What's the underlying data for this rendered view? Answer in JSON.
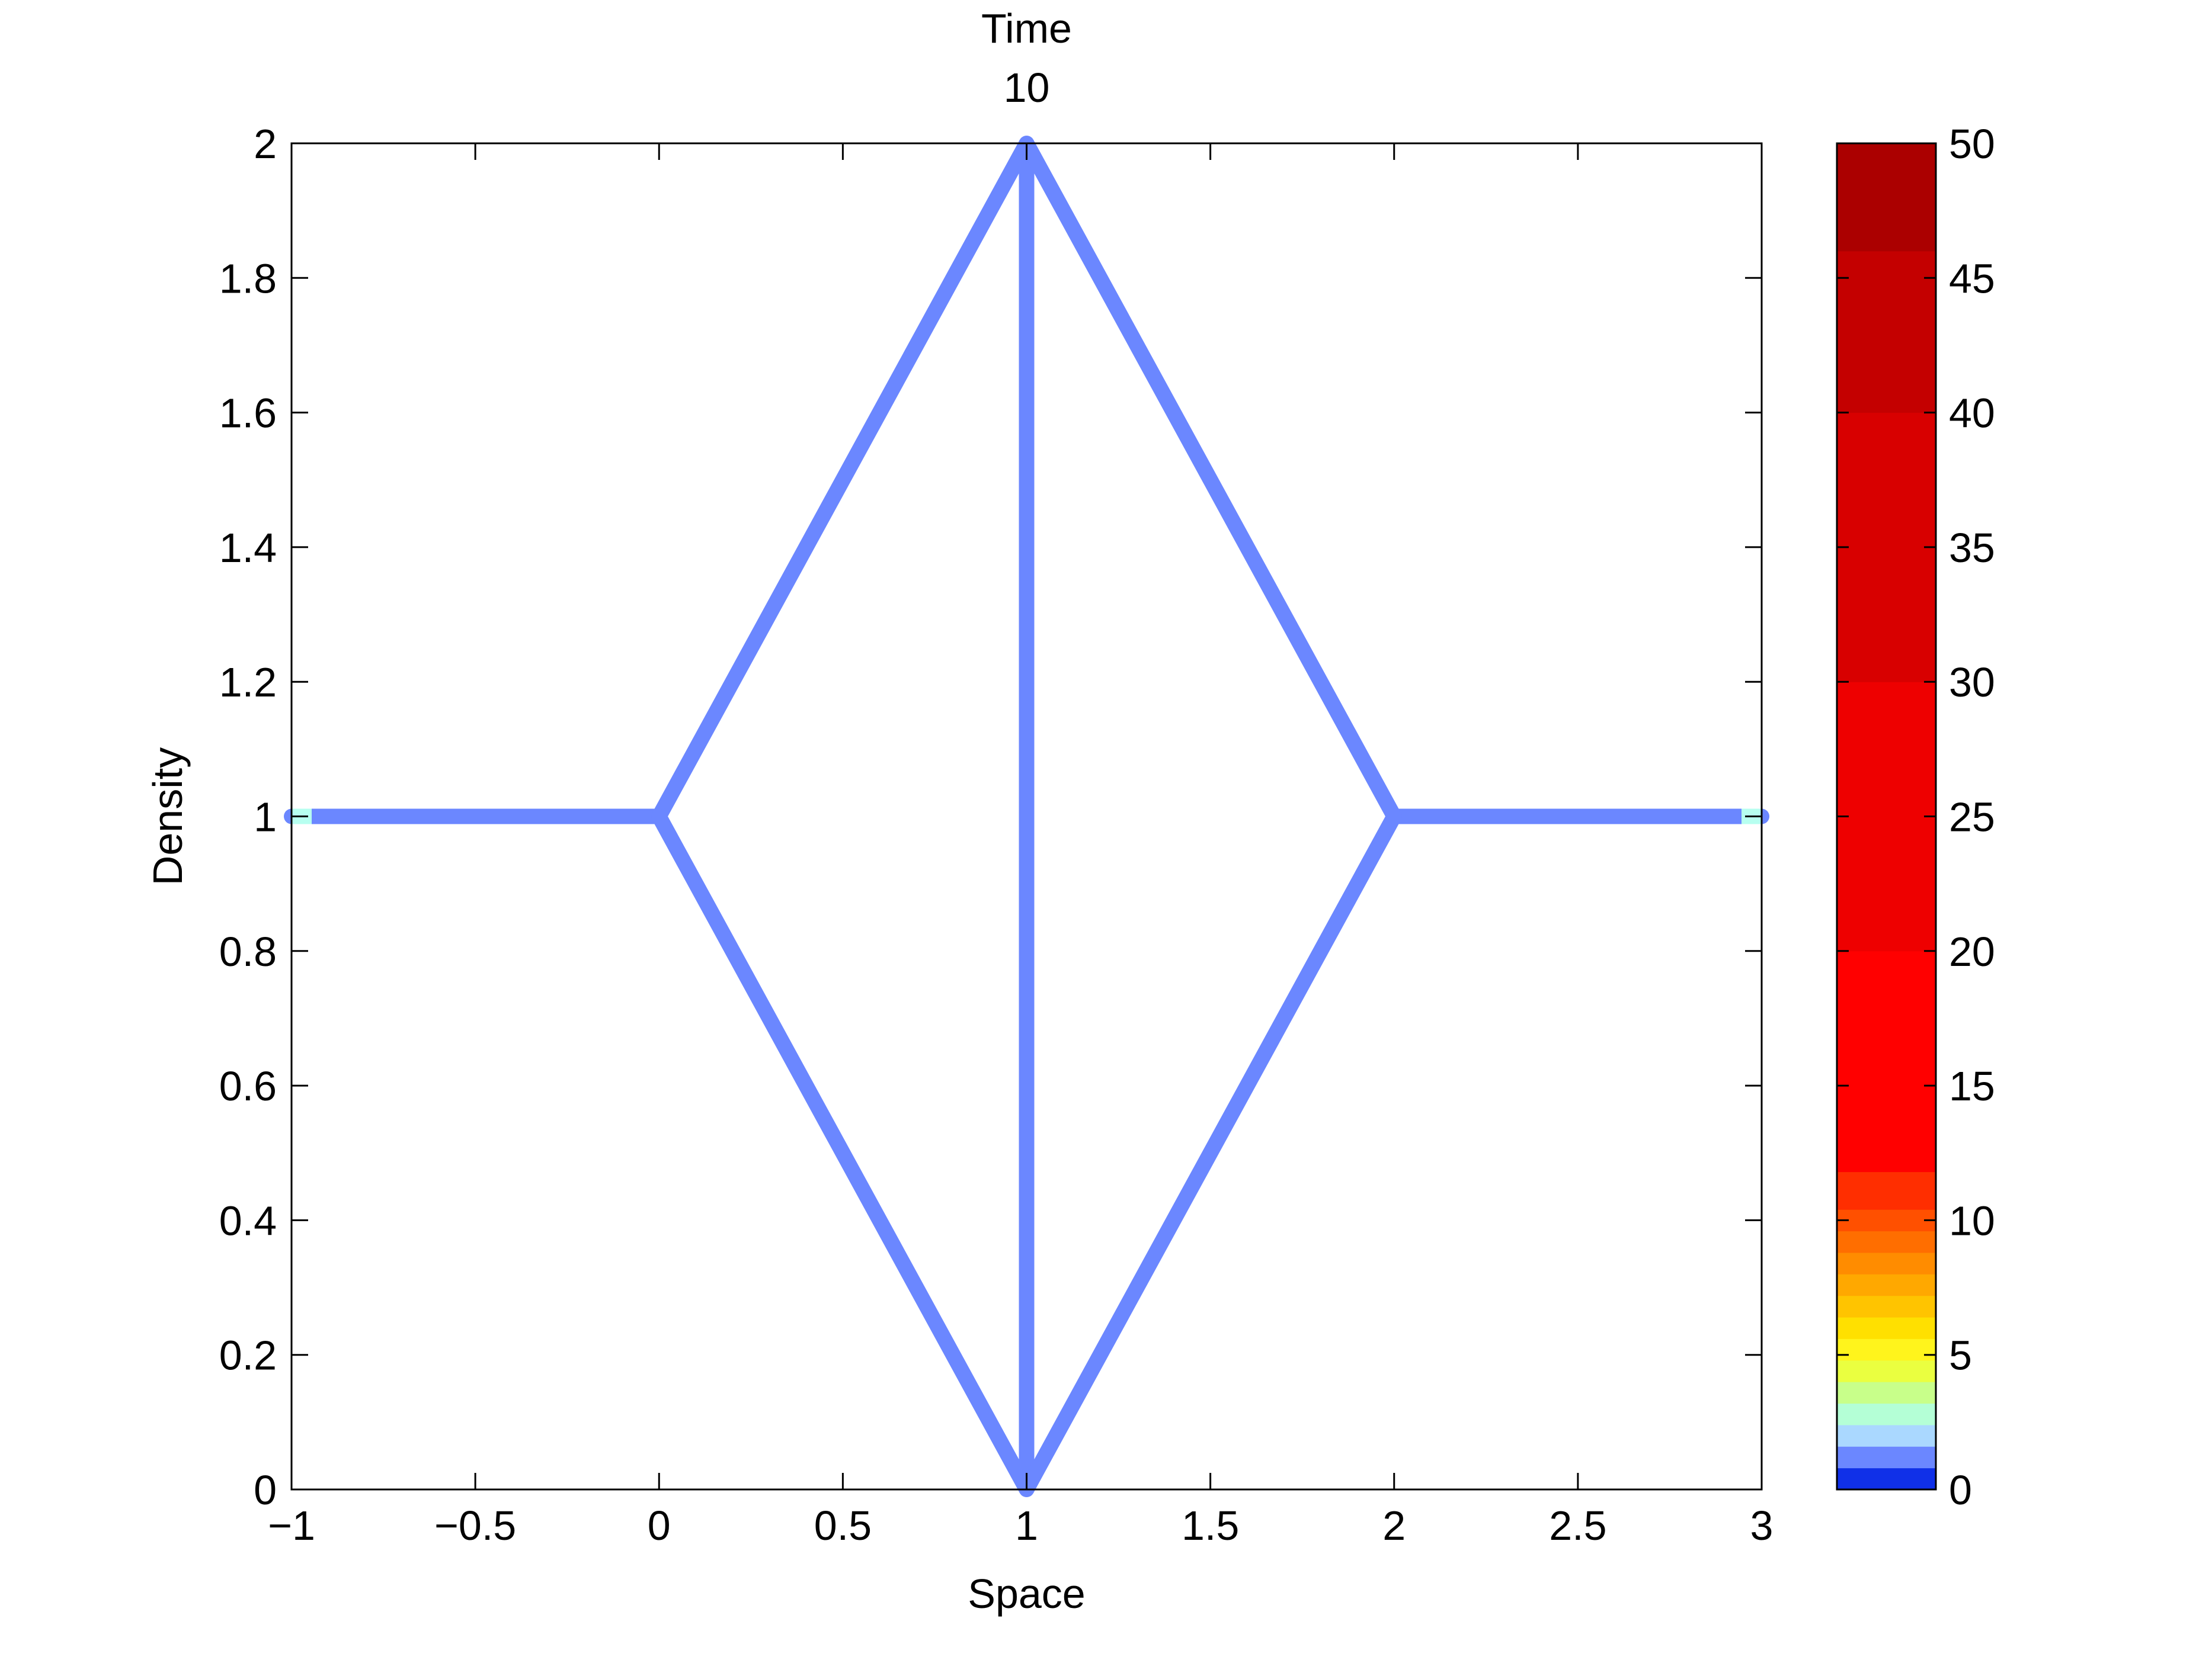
{
  "chart_data": {
    "type": "line",
    "title_lines": [
      "Time",
      "10"
    ],
    "xlabel": "Space",
    "ylabel": "Density",
    "xlim": [
      -1,
      3
    ],
    "ylim": [
      0,
      2
    ],
    "x_ticks": [
      -1,
      -0.5,
      0,
      0.5,
      1,
      1.5,
      2,
      2.5,
      3
    ],
    "x_tick_labels": [
      "−1",
      "−0.5",
      "0",
      "0.5",
      "1",
      "1.5",
      "2",
      "2.5",
      "3"
    ],
    "y_ticks": [
      0,
      0.2,
      0.4,
      0.6,
      0.8,
      1,
      1.2,
      1.4,
      1.6,
      1.8,
      2
    ],
    "y_tick_labels": [
      "0",
      "0.2",
      "0.4",
      "0.6",
      "0.8",
      "1",
      "1.2",
      "1.4",
      "1.6",
      "1.8",
      "2"
    ],
    "grid": false,
    "line_color": "#6b87ff",
    "endpoint_color": "#b7fff0",
    "segments": [
      {
        "x": [
          -1,
          0
        ],
        "y": [
          1,
          1
        ]
      },
      {
        "x": [
          0,
          1
        ],
        "y": [
          1,
          2
        ]
      },
      {
        "x": [
          0,
          1
        ],
        "y": [
          1,
          0
        ]
      },
      {
        "x": [
          1,
          1
        ],
        "y": [
          0,
          2
        ]
      },
      {
        "x": [
          1,
          2
        ],
        "y": [
          2,
          1
        ]
      },
      {
        "x": [
          1,
          2
        ],
        "y": [
          0,
          1
        ]
      },
      {
        "x": [
          2,
          3
        ],
        "y": [
          1,
          1
        ]
      }
    ],
    "endpoints": [
      {
        "x": -1,
        "y": 1
      },
      {
        "x": 3,
        "y": 1
      }
    ],
    "colorbar": {
      "range": [
        0,
        50
      ],
      "ticks": [
        0,
        5,
        10,
        15,
        20,
        25,
        30,
        35,
        40,
        45,
        50
      ],
      "tick_labels": [
        "0",
        "5",
        "10",
        "15",
        "20",
        "25",
        "30",
        "35",
        "40",
        "45",
        "50"
      ],
      "bands": [
        {
          "from": 0,
          "to": 0.8,
          "color": "#1030e8"
        },
        {
          "from": 0.8,
          "to": 1.6,
          "color": "#6b87ff"
        },
        {
          "from": 1.6,
          "to": 2.4,
          "color": "#aad8ff"
        },
        {
          "from": 2.4,
          "to": 3.2,
          "color": "#b4ffd6"
        },
        {
          "from": 3.2,
          "to": 4.0,
          "color": "#c8ff8a"
        },
        {
          "from": 4.0,
          "to": 4.8,
          "color": "#eaff40"
        },
        {
          "from": 4.8,
          "to": 5.6,
          "color": "#fff41c"
        },
        {
          "from": 5.6,
          "to": 6.4,
          "color": "#ffe000"
        },
        {
          "from": 6.4,
          "to": 7.2,
          "color": "#ffc400"
        },
        {
          "from": 7.2,
          "to": 8.0,
          "color": "#ffa800"
        },
        {
          "from": 8.0,
          "to": 8.8,
          "color": "#ff8c00"
        },
        {
          "from": 8.8,
          "to": 9.6,
          "color": "#ff6e00"
        },
        {
          "from": 9.6,
          "to": 10.4,
          "color": "#ff5000"
        },
        {
          "from": 10.4,
          "to": 11.8,
          "color": "#ff2e00"
        },
        {
          "from": 11.8,
          "to": 20,
          "color": "#ff0000"
        },
        {
          "from": 20,
          "to": 30,
          "color": "#ee0000"
        },
        {
          "from": 30,
          "to": 40,
          "color": "#d80000"
        },
        {
          "from": 40,
          "to": 46,
          "color": "#c40000"
        },
        {
          "from": 46,
          "to": 50,
          "color": "#ab0000"
        }
      ]
    }
  }
}
